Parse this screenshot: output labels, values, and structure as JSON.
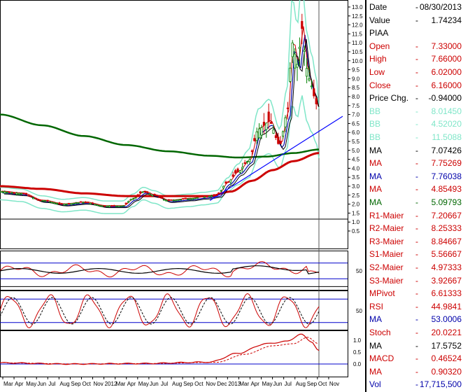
{
  "legend": {
    "rows": [
      {
        "label": "Date",
        "dash": "-",
        "value": "08/30/2013",
        "color": "#000000"
      },
      {
        "label": "Value",
        "dash": "-",
        "value": "1.74234",
        "color": "#000000"
      },
      {
        "label": "PIAA",
        "dash": "",
        "value": "",
        "color": "#000000"
      },
      {
        "label": "Open",
        "dash": "-",
        "value": "7.33000",
        "color": "#cc0000"
      },
      {
        "label": "High",
        "dash": "-",
        "value": "7.66000",
        "color": "#cc0000"
      },
      {
        "label": "Low",
        "dash": "-",
        "value": "6.02000",
        "color": "#cc0000"
      },
      {
        "label": "Close",
        "dash": "-",
        "value": "6.16000",
        "color": "#cc0000"
      },
      {
        "label": "Price Chg.",
        "dash": "-",
        "value": "-0.94000",
        "color": "#000000"
      },
      {
        "label": "BB",
        "dash": "-",
        "value": "8.01450",
        "color": "#7fe6c8"
      },
      {
        "label": "BB",
        "dash": "-",
        "value": "4.52020",
        "color": "#7fe6c8"
      },
      {
        "label": "BB",
        "dash": "-",
        "value": "11.5088",
        "color": "#7fe6c8"
      },
      {
        "label": "MA",
        "dash": "-",
        "value": "7.07426",
        "color": "#000000"
      },
      {
        "label": "MA",
        "dash": "-",
        "value": "7.75269",
        "color": "#cc0000"
      },
      {
        "label": "MA",
        "dash": "-",
        "value": "7.76038",
        "color": "#0000aa"
      },
      {
        "label": "MA",
        "dash": "-",
        "value": "4.85493",
        "color": "#cc0000"
      },
      {
        "label": "MA",
        "dash": "-",
        "value": "5.09793",
        "color": "#006600"
      },
      {
        "label": "R1-Maier",
        "dash": "-",
        "value": "7.20667",
        "color": "#cc0000"
      },
      {
        "label": "R2-Maier",
        "dash": "-",
        "value": "8.25333",
        "color": "#cc0000"
      },
      {
        "label": "R3-Maier",
        "dash": "-",
        "value": "8.84667",
        "color": "#cc0000"
      },
      {
        "label": "S1-Maier",
        "dash": "-",
        "value": "5.56667",
        "color": "#cc0000"
      },
      {
        "label": "S2-Maier",
        "dash": "-",
        "value": "4.97333",
        "color": "#cc0000"
      },
      {
        "label": "S3-Maier",
        "dash": "-",
        "value": "3.92667",
        "color": "#cc0000"
      },
      {
        "label": "MPivot",
        "dash": "-",
        "value": "6.61333",
        "color": "#cc0000"
      },
      {
        "label": "RSI",
        "dash": "-",
        "value": "44.9841",
        "color": "#cc0000"
      },
      {
        "label": "MA",
        "dash": "-",
        "value": "53.0006",
        "color": "#0000aa"
      },
      {
        "label": "Stoch",
        "dash": "-",
        "value": "20.0221",
        "color": "#cc0000"
      },
      {
        "label": "MA",
        "dash": "-",
        "value": "17.5752",
        "color": "#000000"
      },
      {
        "label": "MACD",
        "dash": "-",
        "value": "0.46524",
        "color": "#cc0000"
      },
      {
        "label": "MA",
        "dash": "-",
        "value": "0.90320",
        "color": "#cc0000"
      },
      {
        "label": "Vol",
        "dash": "-",
        "value": "17,715,500",
        "color": "#0000aa"
      }
    ]
  },
  "price_axis": {
    "ticks": [
      "13.0",
      "12.5",
      "12.0",
      "11.5",
      "11.0",
      "10.5",
      "10.0",
      "9.5",
      "9.0",
      "8.5",
      "8.0",
      "7.5",
      "7.0",
      "6.5",
      "6.0",
      "5.5",
      "5.0",
      "4.5",
      "4.0",
      "3.5",
      "3.0",
      "2.5",
      "2.0",
      "1.5",
      "1.0",
      "0.5"
    ]
  },
  "indicator_axis": {
    "rsi_tick": "50",
    "stoch_tick": "50",
    "macd_ticks": [
      "1.0",
      "0.5",
      "0.0"
    ]
  },
  "time_axis": {
    "labels": [
      "Mar",
      "Apr",
      "May",
      "Jun",
      "Jul",
      "Aug",
      "Sep",
      "Oct",
      "Nov",
      "2012",
      "Mar",
      "Apr",
      "May",
      "Jun",
      "Jul",
      "Aug",
      "Sep",
      "Oct",
      "Nov",
      "Dec",
      "2013",
      "Mar",
      "Apr",
      "May",
      "Jun",
      "Jul",
      "Aug",
      "Sep",
      "Oct",
      "Nov"
    ]
  },
  "colors": {
    "candle_up": "#008000",
    "candle_down": "#cc0000",
    "bollinger": "#7fe6c8",
    "ma_long": "#006600",
    "ma_mid": "#cc0000",
    "ma_short": "#0000aa",
    "trend": "#0000ff"
  }
}
